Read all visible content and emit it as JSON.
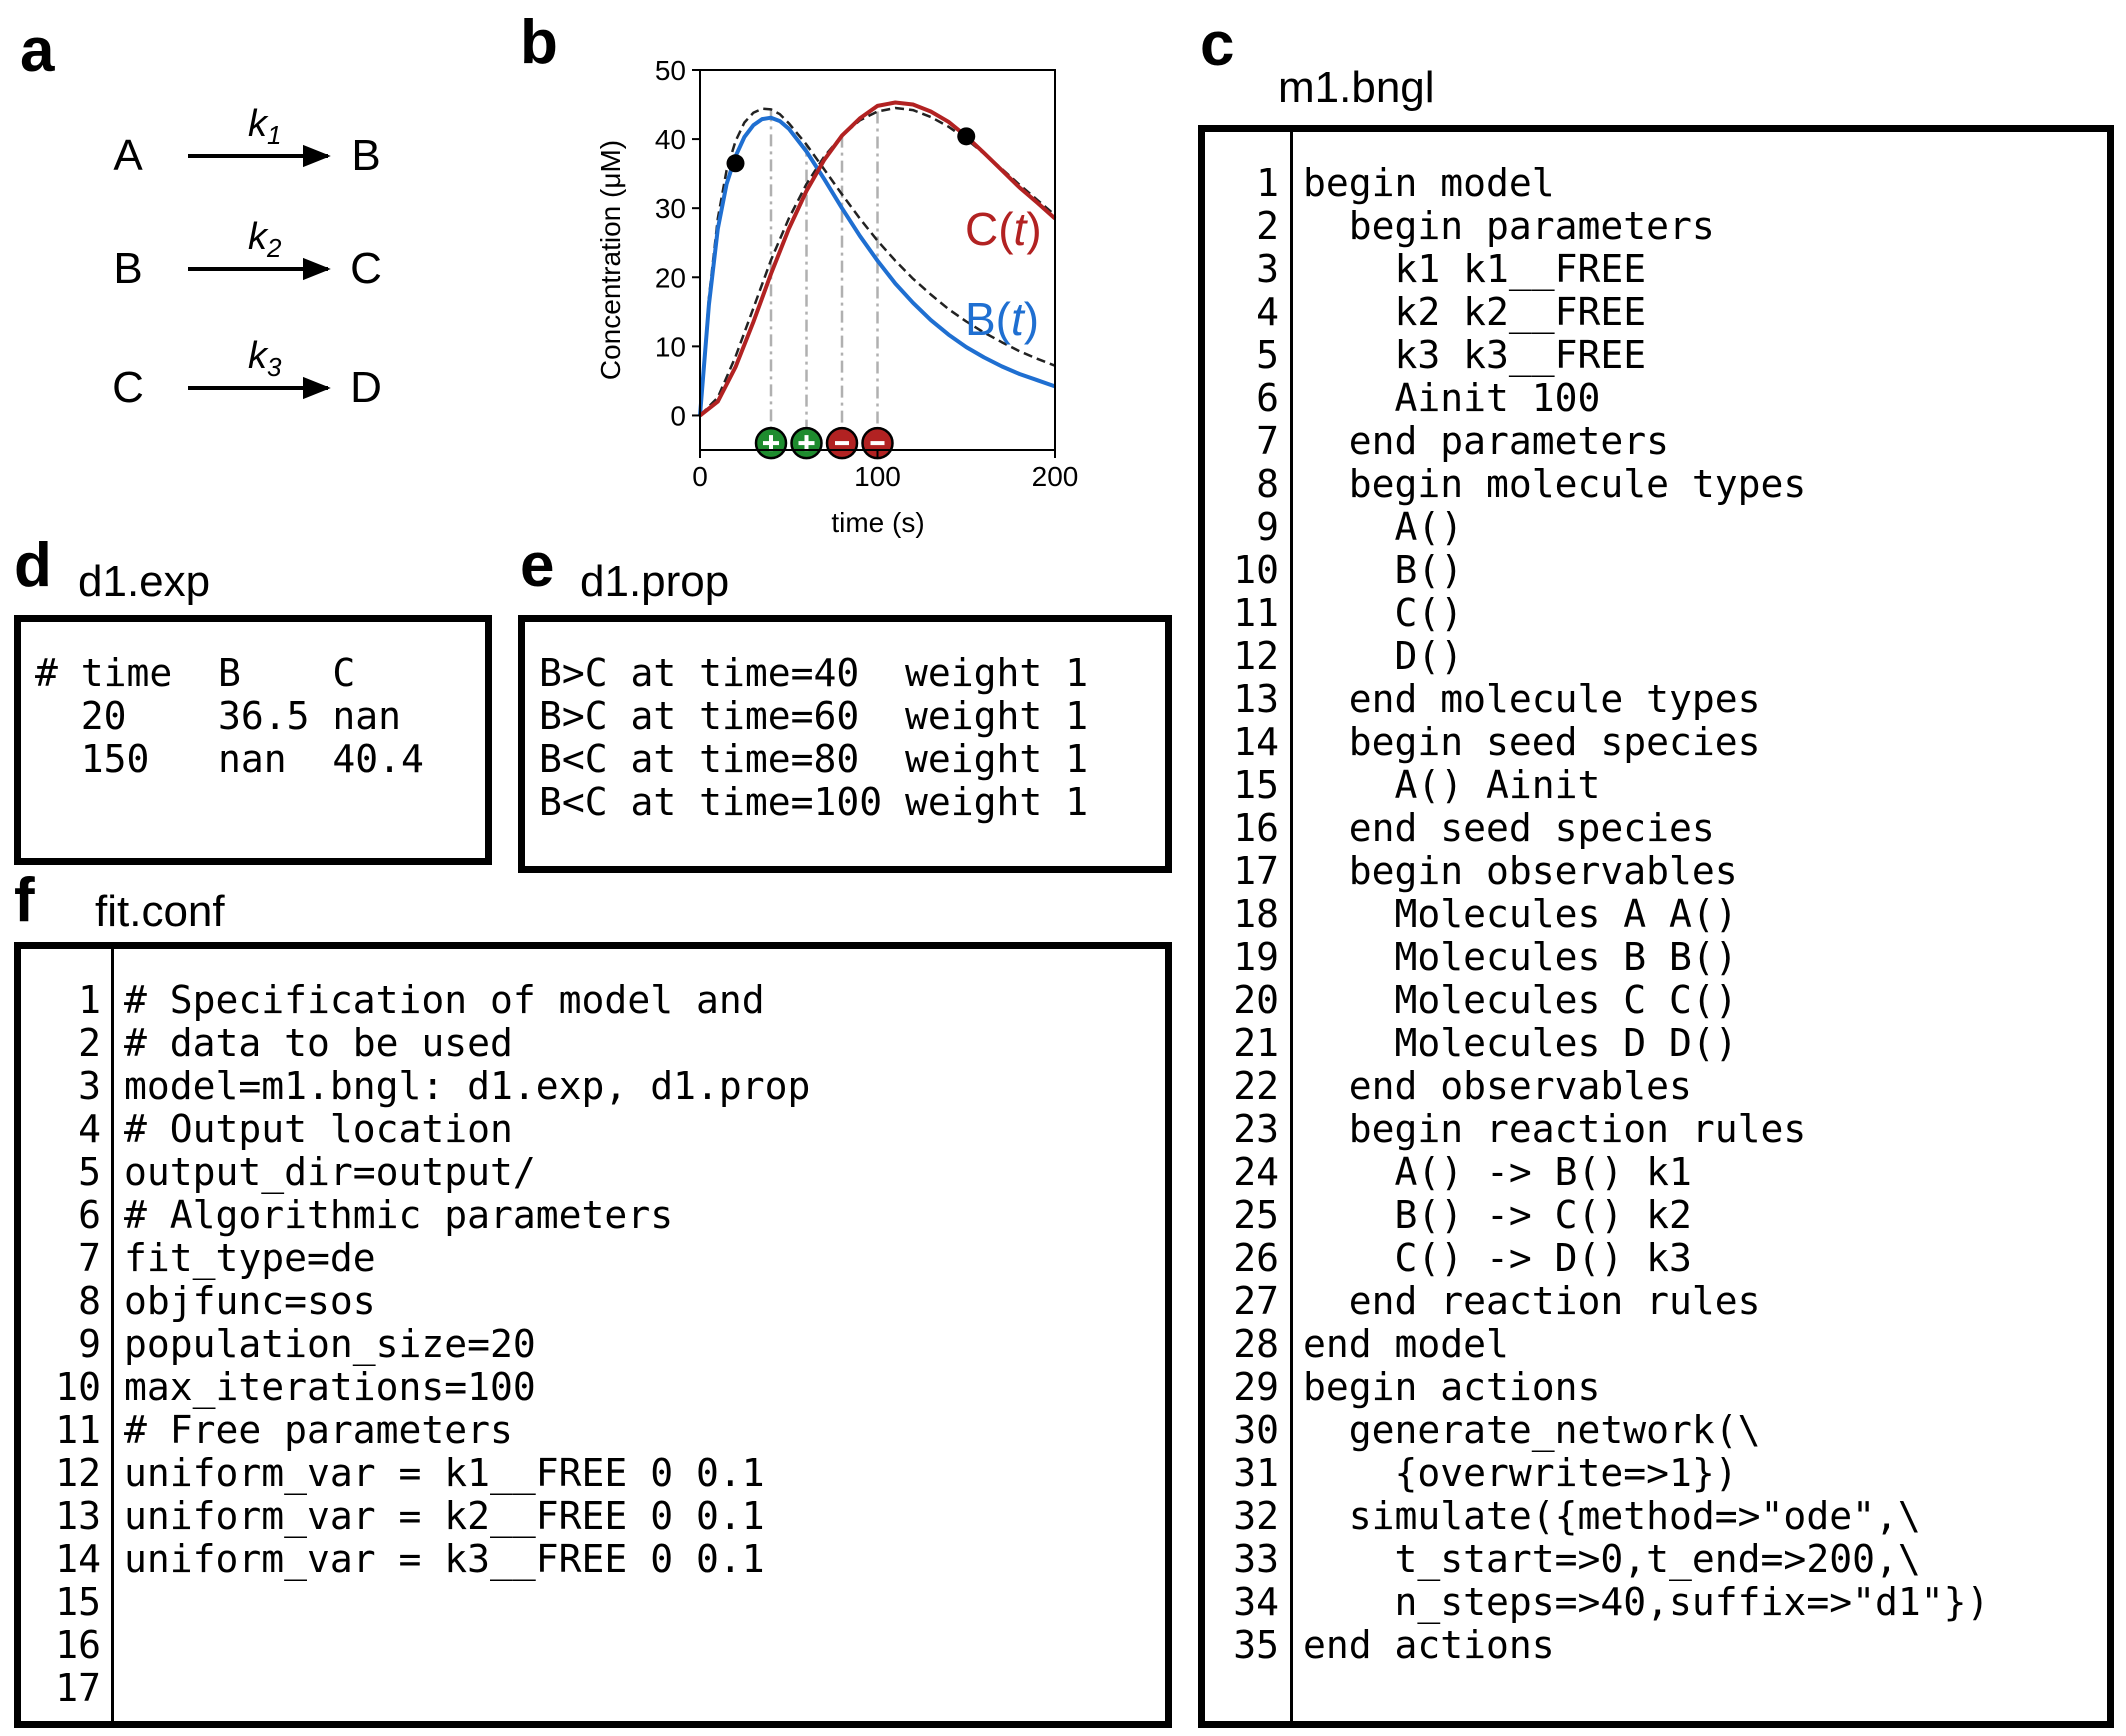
{
  "panel_labels": {
    "a": "a",
    "b": "b",
    "c": "c",
    "d": "d",
    "e": "e",
    "f": "f"
  },
  "reactions": [
    {
      "reactant": "A",
      "product": "B",
      "rate": "k",
      "rate_sub": "1"
    },
    {
      "reactant": "B",
      "product": "C",
      "rate": "k",
      "rate_sub": "2"
    },
    {
      "reactant": "C",
      "product": "D",
      "rate": "k",
      "rate_sub": "3"
    }
  ],
  "chart_data": {
    "type": "line",
    "xlabel": "time (s)",
    "ylabel": "Concentration (μM)",
    "xlim": [
      0,
      200
    ],
    "ylim": [
      -5,
      50
    ],
    "xticks": [
      "0",
      "100",
      "200"
    ],
    "yticks": [
      "0",
      "10",
      "20",
      "30",
      "40",
      "50"
    ],
    "series": [
      {
        "name": "B(t)",
        "color": "#1f6fd1",
        "x": [
          0,
          5,
          10,
          15,
          20,
          25,
          30,
          35,
          40,
          45,
          50,
          60,
          70,
          80,
          90,
          100,
          110,
          120,
          130,
          140,
          150,
          160,
          170,
          180,
          190,
          200
        ],
        "y": [
          0,
          16,
          27,
          33.5,
          37.5,
          40.3,
          42,
          42.9,
          43.1,
          42.6,
          41.5,
          38.2,
          34.2,
          30,
          26,
          22.4,
          19.1,
          16.3,
          13.8,
          11.7,
          9.9,
          8.4,
          7.1,
          6,
          5.1,
          4.2
        ]
      },
      {
        "name": "C(t)",
        "color": "#b22222",
        "x": [
          0,
          10,
          20,
          30,
          40,
          50,
          60,
          70,
          80,
          90,
          100,
          110,
          120,
          130,
          140,
          150,
          160,
          170,
          180,
          190,
          200
        ],
        "y": [
          0,
          2,
          7,
          13.5,
          20.5,
          27,
          32.5,
          37,
          40.5,
          43,
          44.8,
          45.3,
          45,
          44,
          42.5,
          40.4,
          38,
          35.5,
          33,
          30.8,
          28.5
        ]
      },
      {
        "name": "",
        "color": "#222222",
        "dashed": true,
        "x": [
          0,
          5,
          10,
          15,
          20,
          25,
          30,
          35,
          40,
          45,
          50,
          60,
          70,
          80,
          90,
          100,
          110,
          120,
          130,
          140,
          150,
          160,
          170,
          180,
          190,
          200
        ],
        "y": [
          0,
          17,
          28.5,
          35.5,
          39.7,
          42.4,
          43.8,
          44.4,
          44.3,
          43.6,
          42.3,
          39.2,
          35.6,
          32,
          28.5,
          25.3,
          22.4,
          19.8,
          17.5,
          15.4,
          13.6,
          12,
          10.6,
          9.3,
          8.2,
          7.2
        ]
      },
      {
        "name": "",
        "color": "#222222",
        "dashed": true,
        "x": [
          0,
          10,
          20,
          30,
          40,
          50,
          60,
          70,
          80,
          90,
          100,
          110,
          120,
          130,
          140,
          150,
          160,
          170,
          180,
          190,
          200
        ],
        "y": [
          0,
          2.6,
          8.5,
          15.5,
          22.5,
          28.5,
          33.5,
          37.5,
          40.5,
          42.7,
          44,
          44.5,
          44.2,
          43.2,
          41.8,
          40,
          37.9,
          35.7,
          33.4,
          31.2,
          29
        ]
      }
    ],
    "points": [
      {
        "x": 20,
        "y": 36.5
      },
      {
        "x": 150,
        "y": 40.4
      }
    ],
    "property_markers": [
      {
        "x": 40,
        "sign": "+",
        "color": "#1e8c2e"
      },
      {
        "x": 60,
        "sign": "+",
        "color": "#1e8c2e"
      },
      {
        "x": 80,
        "sign": "-",
        "color": "#b22222"
      },
      {
        "x": 100,
        "sign": "-",
        "color": "#b22222"
      }
    ],
    "series_labels": {
      "C": {
        "pre": "C(",
        "var": "t",
        "post": ")"
      },
      "B": {
        "pre": "B(",
        "var": "t",
        "post": ")"
      }
    }
  },
  "m1_bngl": {
    "title": "m1.bngl",
    "lines": [
      "begin model",
      "  begin parameters",
      "    k1 k1__FREE",
      "    k2 k2__FREE",
      "    k3 k3__FREE",
      "    Ainit 100",
      "  end parameters",
      "  begin molecule types",
      "    A()",
      "    B()",
      "    C()",
      "    D()",
      "  end molecule types",
      "  begin seed species",
      "    A() Ainit",
      "  end seed species",
      "  begin observables",
      "    Molecules A A()",
      "    Molecules B B()",
      "    Molecules C C()",
      "    Molecules D D()",
      "  end observables",
      "  begin reaction rules",
      "    A() -> B() k1",
      "    B() -> C() k2",
      "    C() -> D() k3",
      "  end reaction rules",
      "end model",
      "begin actions",
      "  generate_network(\\",
      "    {overwrite=>1})",
      "  simulate({method=>\"ode\",\\",
      "    t_start=>0,t_end=>200,\\",
      "    n_steps=>40,suffix=>\"d1\"})",
      "end actions"
    ]
  },
  "d1_exp": {
    "title": "d1.exp",
    "lines": [
      "# time  B    C",
      "  20    36.5 nan",
      "  150   nan  40.4"
    ]
  },
  "d1_prop": {
    "title": "d1.prop",
    "lines": [
      "B>C at time=40  weight 1",
      "B>C at time=60  weight 1",
      "B<C at time=80  weight 1",
      "B<C at time=100 weight 1"
    ]
  },
  "fit_conf": {
    "title": "fit.conf",
    "lines": [
      "# Specification of model and",
      "# data to be used",
      "model=m1.bngl: d1.exp, d1.prop",
      "",
      "# Output location",
      "output_dir=output/",
      "",
      "# Algorithmic parameters",
      "fit_type=de",
      "objfunc=sos",
      "population_size=20",
      "max_iterations=100",
      "",
      "# Free parameters",
      "uniform_var = k1__FREE 0 0.1",
      "uniform_var = k2__FREE 0 0.1",
      "uniform_var = k3__FREE 0 0.1"
    ]
  }
}
